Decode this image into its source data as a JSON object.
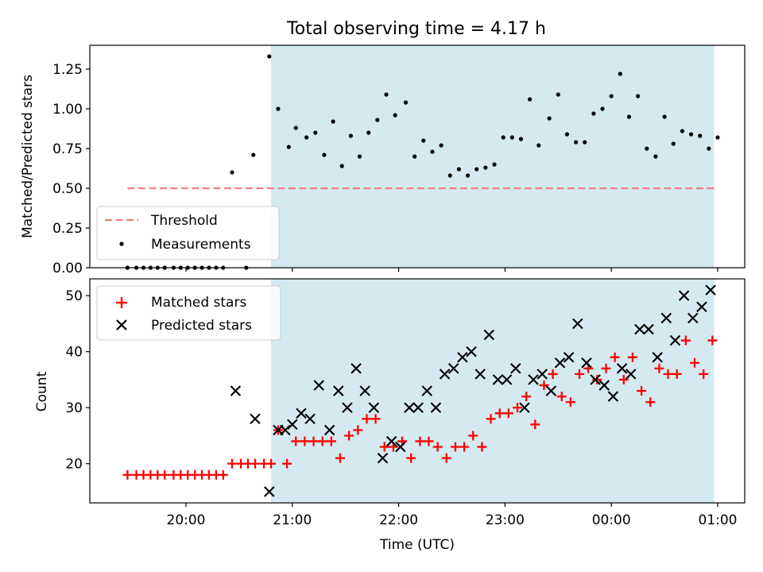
{
  "figure": {
    "title": "Total observing time = 4.17 h"
  },
  "chart_data": [
    {
      "type": "scatter",
      "panel": "top",
      "title": "Total observing time = 4.17 h",
      "ylabel": "Matched/Predicted stars",
      "xlabel": "",
      "ylim": [
        0,
        1.4
      ],
      "yticks": [
        0.0,
        0.25,
        0.5,
        0.75,
        1.0,
        1.25
      ],
      "ytick_labels": [
        "0.00",
        "0.25",
        "0.50",
        "0.75",
        "1.00",
        "1.25"
      ],
      "x_axis": "time (UTC), no tick labels",
      "legend_position": "lower-left",
      "shaded_region": {
        "from": "20:48",
        "to": "00:58",
        "color": "#d4eaf0"
      },
      "threshold": {
        "name": "Threshold",
        "value": 0.5,
        "from": "19:27",
        "to": "00:58",
        "color": "#f08080",
        "style": "dashed"
      },
      "series": [
        {
          "name": "Measurements",
          "color": "#000000",
          "points": [
            [
              "19:27",
              0
            ],
            [
              "19:32",
              0
            ],
            [
              "19:36",
              0
            ],
            [
              "19:40",
              0
            ],
            [
              "19:44",
              0
            ],
            [
              "19:48",
              0
            ],
            [
              "19:53",
              0
            ],
            [
              "19:57",
              0
            ],
            [
              "20:01",
              0
            ],
            [
              "20:05",
              0
            ],
            [
              "20:09",
              0
            ],
            [
              "20:13",
              0
            ],
            [
              "20:17",
              0
            ],
            [
              "20:21",
              0
            ],
            [
              "20:26",
              0.6
            ],
            [
              "20:34",
              0
            ],
            [
              "20:38",
              0.71
            ],
            [
              "20:47",
              1.33
            ],
            [
              "20:52",
              1.0
            ],
            [
              "20:58",
              0.76
            ],
            [
              "21:02",
              0.88
            ],
            [
              "21:08",
              0.82
            ],
            [
              "21:13",
              0.85
            ],
            [
              "21:18",
              0.71
            ],
            [
              "21:23",
              0.92
            ],
            [
              "21:28",
              0.64
            ],
            [
              "21:33",
              0.83
            ],
            [
              "21:38",
              0.7
            ],
            [
              "21:43",
              0.85
            ],
            [
              "21:48",
              0.93
            ],
            [
              "21:53",
              1.09
            ],
            [
              "21:58",
              0.96
            ],
            [
              "22:04",
              1.04
            ],
            [
              "22:09",
              0.7
            ],
            [
              "22:14",
              0.8
            ],
            [
              "22:19",
              0.73
            ],
            [
              "22:24",
              0.77
            ],
            [
              "22:29",
              0.58
            ],
            [
              "22:34",
              0.62
            ],
            [
              "22:39",
              0.58
            ],
            [
              "22:44",
              0.62
            ],
            [
              "22:49",
              0.63
            ],
            [
              "22:54",
              0.65
            ],
            [
              "22:59",
              0.82
            ],
            [
              "23:04",
              0.82
            ],
            [
              "23:09",
              0.81
            ],
            [
              "23:14",
              1.06
            ],
            [
              "23:19",
              0.77
            ],
            [
              "23:25",
              0.94
            ],
            [
              "23:30",
              1.09
            ],
            [
              "23:35",
              0.84
            ],
            [
              "23:40",
              0.79
            ],
            [
              "23:45",
              0.79
            ],
            [
              "23:50",
              0.97
            ],
            [
              "23:55",
              1.0
            ],
            [
              "00:00",
              1.08
            ],
            [
              "00:05",
              1.22
            ],
            [
              "00:10",
              0.95
            ],
            [
              "00:15",
              1.08
            ],
            [
              "00:20",
              0.75
            ],
            [
              "00:25",
              0.7
            ],
            [
              "00:30",
              0.95
            ],
            [
              "00:35",
              0.78
            ],
            [
              "00:40",
              0.86
            ],
            [
              "00:45",
              0.84
            ],
            [
              "00:50",
              0.83
            ],
            [
              "00:55",
              0.75
            ],
            [
              "01:00",
              0.82
            ]
          ]
        }
      ]
    },
    {
      "type": "scatter",
      "panel": "bottom",
      "xlabel": "Time (UTC)",
      "ylabel": "Count",
      "ylim": [
        13,
        53
      ],
      "yticks": [
        20,
        30,
        40,
        50
      ],
      "ytick_labels": [
        "20",
        "30",
        "40",
        "50"
      ],
      "xticks": [
        "20:00",
        "21:00",
        "22:00",
        "23:00",
        "00:00",
        "01:00"
      ],
      "xtick_labels": [
        "20:00",
        "21:00",
        "22:00",
        "23:00",
        "00:00",
        "01:00"
      ],
      "legend_position": "upper-left",
      "shaded_region": {
        "from": "20:48",
        "to": "00:58",
        "color": "#d4eaf0"
      },
      "series": [
        {
          "name": "Matched stars",
          "marker": "plus",
          "color": "#ff0000",
          "points": [
            [
              "19:27",
              18
            ],
            [
              "19:32",
              18
            ],
            [
              "19:36",
              18
            ],
            [
              "19:40",
              18
            ],
            [
              "19:44",
              18
            ],
            [
              "19:48",
              18
            ],
            [
              "19:53",
              18
            ],
            [
              "19:57",
              18
            ],
            [
              "20:01",
              18
            ],
            [
              "20:05",
              18
            ],
            [
              "20:09",
              18
            ],
            [
              "20:13",
              18
            ],
            [
              "20:17",
              18
            ],
            [
              "20:21",
              18
            ],
            [
              "20:26",
              20
            ],
            [
              "20:31",
              20
            ],
            [
              "20:35",
              20
            ],
            [
              "20:39",
              20
            ],
            [
              "20:44",
              20
            ],
            [
              "20:48",
              20
            ],
            [
              "20:52",
              26
            ],
            [
              "20:57",
              20
            ],
            [
              "21:02",
              24
            ],
            [
              "21:07",
              24
            ],
            [
              "21:12",
              24
            ],
            [
              "21:17",
              24
            ],
            [
              "21:22",
              24
            ],
            [
              "21:27",
              21
            ],
            [
              "21:32",
              25
            ],
            [
              "21:37",
              26
            ],
            [
              "21:42",
              28
            ],
            [
              "21:47",
              28
            ],
            [
              "21:52",
              23
            ],
            [
              "21:57",
              23
            ],
            [
              "22:02",
              24
            ],
            [
              "22:07",
              21
            ],
            [
              "22:12",
              24
            ],
            [
              "22:17",
              24
            ],
            [
              "22:22",
              23
            ],
            [
              "22:27",
              21
            ],
            [
              "22:32",
              23
            ],
            [
              "22:37",
              23
            ],
            [
              "22:42",
              25
            ],
            [
              "22:47",
              23
            ],
            [
              "22:52",
              28
            ],
            [
              "22:57",
              29
            ],
            [
              "23:02",
              29
            ],
            [
              "23:07",
              30
            ],
            [
              "23:12",
              32
            ],
            [
              "23:17",
              27
            ],
            [
              "23:22",
              34
            ],
            [
              "23:27",
              36
            ],
            [
              "23:32",
              32
            ],
            [
              "23:37",
              31
            ],
            [
              "23:42",
              36
            ],
            [
              "23:47",
              37
            ],
            [
              "23:52",
              35
            ],
            [
              "23:57",
              37
            ],
            [
              "00:02",
              39
            ],
            [
              "00:07",
              35
            ],
            [
              "00:12",
              39
            ],
            [
              "00:17",
              33
            ],
            [
              "00:22",
              31
            ],
            [
              "00:27",
              37
            ],
            [
              "00:32",
              36
            ],
            [
              "00:37",
              36
            ],
            [
              "00:42",
              42
            ],
            [
              "00:47",
              38
            ],
            [
              "00:52",
              36
            ],
            [
              "00:57",
              42
            ]
          ]
        },
        {
          "name": "Predicted stars",
          "marker": "x",
          "color": "#000000",
          "points": [
            [
              "20:28",
              33
            ],
            [
              "20:39",
              28
            ],
            [
              "20:47",
              15
            ],
            [
              "20:52",
              26
            ],
            [
              "20:56",
              26
            ],
            [
              "21:00",
              27
            ],
            [
              "21:05",
              29
            ],
            [
              "21:10",
              28
            ],
            [
              "21:15",
              34
            ],
            [
              "21:21",
              26
            ],
            [
              "21:26",
              33
            ],
            [
              "21:31",
              30
            ],
            [
              "21:36",
              37
            ],
            [
              "21:41",
              33
            ],
            [
              "21:46",
              30
            ],
            [
              "21:51",
              21
            ],
            [
              "21:56",
              24
            ],
            [
              "22:01",
              23
            ],
            [
              "22:06",
              30
            ],
            [
              "22:11",
              30
            ],
            [
              "22:16",
              33
            ],
            [
              "22:21",
              30
            ],
            [
              "22:26",
              36
            ],
            [
              "22:31",
              37
            ],
            [
              "22:36",
              39
            ],
            [
              "22:41",
              40
            ],
            [
              "22:46",
              36
            ],
            [
              "22:51",
              43
            ],
            [
              "22:56",
              35
            ],
            [
              "23:01",
              35
            ],
            [
              "23:06",
              37
            ],
            [
              "23:11",
              30
            ],
            [
              "23:16",
              35
            ],
            [
              "23:21",
              36
            ],
            [
              "23:26",
              33
            ],
            [
              "23:31",
              38
            ],
            [
              "23:36",
              39
            ],
            [
              "23:41",
              45
            ],
            [
              "23:46",
              38
            ],
            [
              "23:51",
              35
            ],
            [
              "23:56",
              34
            ],
            [
              "00:01",
              32
            ],
            [
              "00:06",
              37
            ],
            [
              "00:11",
              36
            ],
            [
              "00:16",
              44
            ],
            [
              "00:21",
              44
            ],
            [
              "00:26",
              39
            ],
            [
              "00:31",
              46
            ],
            [
              "00:36",
              42
            ],
            [
              "00:41",
              50
            ],
            [
              "00:46",
              46
            ],
            [
              "00:51",
              48
            ],
            [
              "00:56",
              51
            ]
          ]
        }
      ]
    }
  ]
}
